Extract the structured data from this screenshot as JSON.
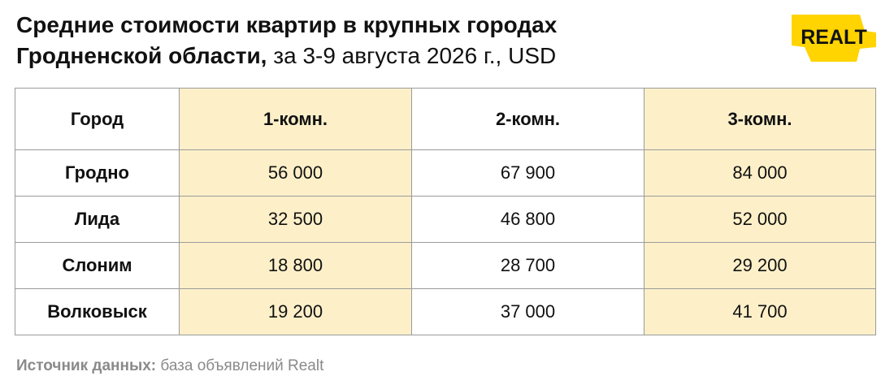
{
  "header": {
    "title_line1": "Средние стоимости квартир в крупных городах",
    "title_line2_bold": "Гродненской области,",
    "title_line2_light": " за 3-9 августа 2026 г., USD"
  },
  "logo": {
    "text": "REALT",
    "color": "#ffd400"
  },
  "chart_data": {
    "type": "table",
    "columns": [
      "Город",
      "1-комн.",
      "2-комн.",
      "3-комн."
    ],
    "rows": [
      [
        "Гродно",
        "56 000",
        "67 900",
        "84 000"
      ],
      [
        "Лида",
        "32 500",
        "46 800",
        "52 000"
      ],
      [
        "Слоним",
        "18 800",
        "28 700",
        "29 200"
      ],
      [
        "Волковыск",
        "19 200",
        "37 000",
        "41 700"
      ]
    ],
    "highlight_color": "#fdf0c9"
  },
  "footer": {
    "source_label": "Источник данных:",
    "source_text": " база объявлений Realt"
  }
}
